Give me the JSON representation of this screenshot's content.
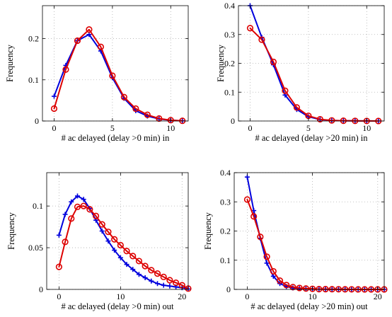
{
  "chart_data": [
    {
      "type": "line",
      "xlabel": "# ac delayed (delay >0 min) in",
      "ylabel": "Frequency",
      "xlim": [
        -1,
        11.5
      ],
      "ylim": [
        0,
        0.28
      ],
      "xticks": [
        0,
        5,
        10
      ],
      "yticks": [
        0,
        0.1,
        0.2
      ],
      "ytick_labels": [
        "0",
        "0.1",
        "0.2"
      ],
      "grid": true,
      "series": [
        {
          "color": "#0000dd",
          "marker": "plus",
          "x": [
            0,
            1,
            2,
            3,
            4,
            5,
            6,
            7,
            8,
            9,
            10,
            11
          ],
          "values": [
            0.06,
            0.135,
            0.195,
            0.21,
            0.17,
            0.105,
            0.055,
            0.025,
            0.012,
            0.005,
            0.002,
            0.0005
          ]
        },
        {
          "color": "#dd0000",
          "marker": "circle",
          "x": [
            0,
            1,
            2,
            3,
            4,
            5,
            6,
            7,
            8,
            9,
            10,
            11
          ],
          "values": [
            0.03,
            0.125,
            0.195,
            0.222,
            0.18,
            0.11,
            0.058,
            0.03,
            0.015,
            0.006,
            0.002,
            0.0005
          ]
        }
      ]
    },
    {
      "type": "line",
      "xlabel": "# ac delayed (delay >20 min) in",
      "ylabel": "Frequency",
      "xlim": [
        -1,
        11.5
      ],
      "ylim": [
        0,
        0.4
      ],
      "xticks": [
        0,
        5,
        10
      ],
      "yticks": [
        0,
        0.1,
        0.2,
        0.3,
        0.4
      ],
      "ytick_labels": [
        "0",
        "0.1",
        "0.2",
        "0.3",
        "0.4"
      ],
      "grid": true,
      "series": [
        {
          "color": "#0000dd",
          "marker": "plus",
          "x": [
            0,
            1,
            2,
            3,
            4,
            5,
            6,
            7,
            8,
            9,
            10,
            11
          ],
          "values": [
            0.4,
            0.29,
            0.195,
            0.09,
            0.04,
            0.015,
            0.005,
            0.002,
            0.001,
            0.0005,
            0.0002,
            0.0001
          ]
        },
        {
          "color": "#dd0000",
          "marker": "circle",
          "x": [
            0,
            1,
            2,
            3,
            4,
            5,
            6,
            7,
            8,
            9,
            10,
            11
          ],
          "values": [
            0.322,
            0.282,
            0.205,
            0.105,
            0.047,
            0.018,
            0.006,
            0.002,
            0.001,
            0.0005,
            0.0002,
            0.0001
          ]
        }
      ]
    },
    {
      "type": "line",
      "xlabel": "# ac delayed (delay >0 min) out",
      "ylabel": "Frequency",
      "xlim": [
        -2,
        21
      ],
      "ylim": [
        0,
        0.14
      ],
      "xticks": [
        0,
        10,
        20
      ],
      "yticks": [
        0,
        0.05,
        0.1
      ],
      "ytick_labels": [
        "0",
        "0.05",
        "0.1"
      ],
      "grid": true,
      "series": [
        {
          "color": "#0000dd",
          "marker": "plus",
          "x": [
            0,
            1,
            2,
            3,
            4,
            5,
            6,
            7,
            8,
            9,
            10,
            11,
            12,
            13,
            14,
            15,
            16,
            17,
            18,
            19,
            20,
            21
          ],
          "values": [
            0.065,
            0.09,
            0.105,
            0.112,
            0.108,
            0.097,
            0.083,
            0.07,
            0.058,
            0.047,
            0.038,
            0.03,
            0.024,
            0.018,
            0.014,
            0.01,
            0.007,
            0.005,
            0.004,
            0.003,
            0.002,
            0.0005
          ]
        },
        {
          "color": "#dd0000",
          "marker": "circle",
          "x": [
            0,
            1,
            2,
            3,
            4,
            5,
            6,
            7,
            8,
            9,
            10,
            11,
            12,
            13,
            14,
            15,
            16,
            17,
            18,
            19,
            20,
            21
          ],
          "values": [
            0.027,
            0.057,
            0.085,
            0.099,
            0.1,
            0.096,
            0.088,
            0.078,
            0.069,
            0.06,
            0.053,
            0.046,
            0.04,
            0.034,
            0.028,
            0.023,
            0.019,
            0.015,
            0.011,
            0.008,
            0.005,
            0.001
          ]
        }
      ]
    },
    {
      "type": "line",
      "xlabel": "# ac delayed (delay >20 min) out",
      "ylabel": "Frequency",
      "xlim": [
        -2,
        21
      ],
      "ylim": [
        0,
        0.4
      ],
      "xticks": [
        0,
        10,
        20
      ],
      "yticks": [
        0,
        0.1,
        0.2,
        0.3,
        0.4
      ],
      "ytick_labels": [
        "0",
        "0.1",
        "0.2",
        "0.3",
        "0.4"
      ],
      "grid": true,
      "series": [
        {
          "color": "#0000dd",
          "marker": "plus",
          "x": [
            0,
            1,
            2,
            3,
            4,
            5,
            6,
            7,
            8,
            9,
            10,
            11,
            12,
            13,
            14,
            15,
            16,
            17,
            18,
            19,
            20,
            21
          ],
          "values": [
            0.385,
            0.27,
            0.175,
            0.09,
            0.045,
            0.02,
            0.01,
            0.005,
            0.003,
            0.002,
            0.001,
            0.0008,
            0.0005,
            0.0003,
            0.0002,
            0.0001,
            0.0001,
            0.0001,
            0.0001,
            0.0001,
            0.0001,
            0.0001
          ]
        },
        {
          "color": "#dd0000",
          "marker": "circle",
          "x": [
            0,
            1,
            2,
            3,
            4,
            5,
            6,
            7,
            8,
            9,
            10,
            11,
            12,
            13,
            14,
            15,
            16,
            17,
            18,
            19,
            20,
            21
          ],
          "values": [
            0.308,
            0.25,
            0.18,
            0.112,
            0.062,
            0.03,
            0.015,
            0.008,
            0.005,
            0.003,
            0.002,
            0.001,
            0.001,
            0.0007,
            0.0005,
            0.0003,
            0.0002,
            0.0001,
            0.0001,
            0.0001,
            0.0001,
            0.0001
          ]
        }
      ]
    }
  ]
}
